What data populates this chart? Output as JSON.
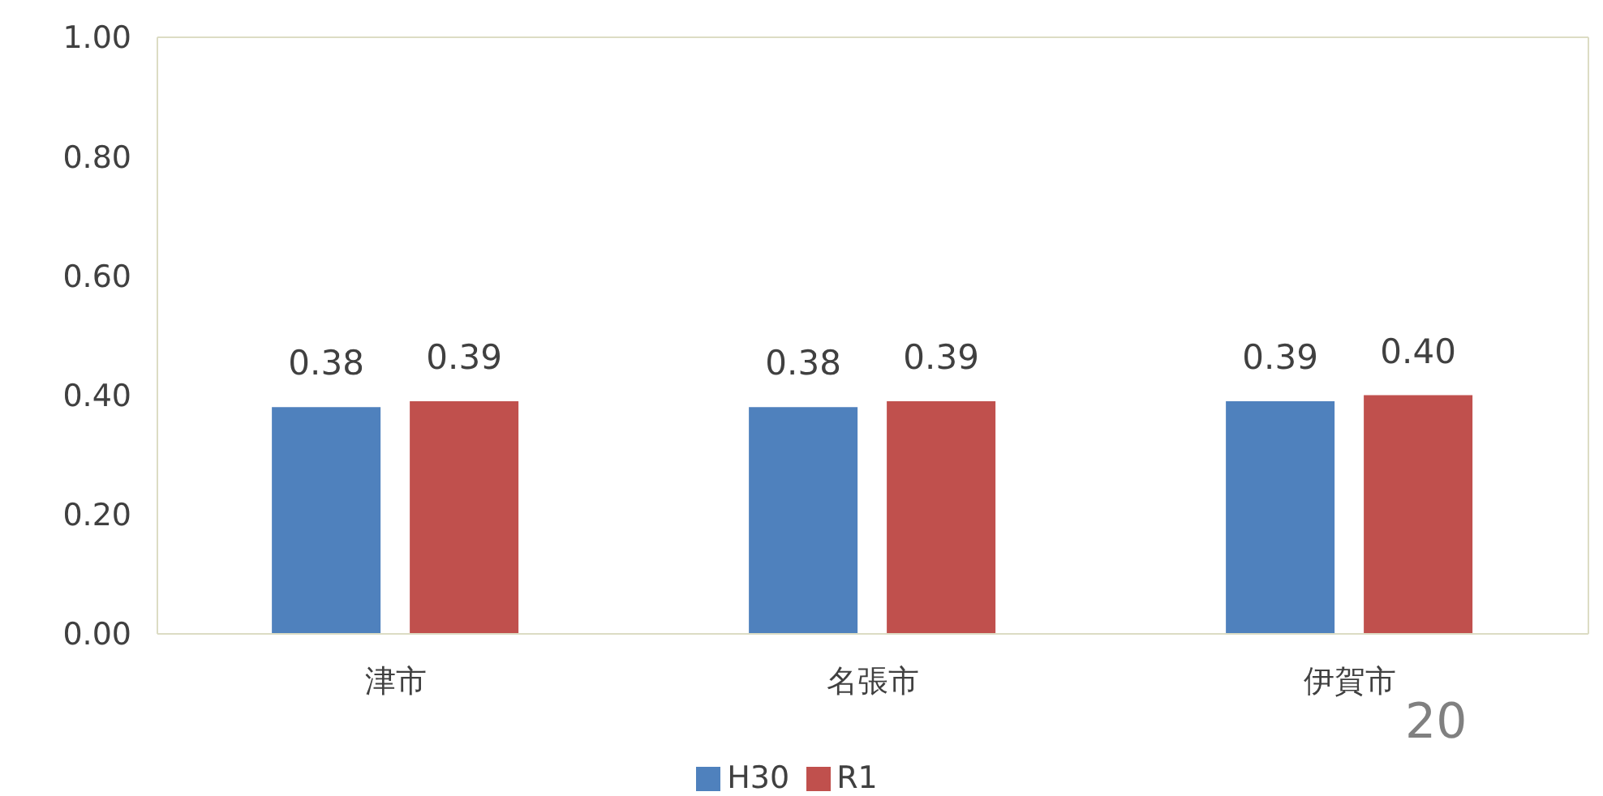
{
  "chart_data": {
    "type": "bar",
    "categories": [
      "津市",
      "名張市",
      "伊賀市"
    ],
    "series": [
      {
        "name": "H30",
        "color": "#4f81bd",
        "values": [
          0.38,
          0.38,
          0.39
        ],
        "value_labels": [
          "0.38",
          "0.38",
          "0.39"
        ]
      },
      {
        "name": "R1",
        "color": "#c0504d",
        "values": [
          0.39,
          0.39,
          0.4
        ],
        "value_labels": [
          "0.39",
          "0.39",
          "0.40"
        ]
      }
    ],
    "ylim": [
      0,
      1
    ],
    "yticks": [
      {
        "value": 0,
        "label": "0.00"
      },
      {
        "value": 0.2,
        "label": "0.20"
      },
      {
        "value": 0.4,
        "label": "0.40"
      },
      {
        "value": 0.6,
        "label": "0.60"
      },
      {
        "value": 0.8,
        "label": "0.80"
      },
      {
        "value": 1,
        "label": "1.00"
      }
    ],
    "grid": false,
    "legend": "bottom",
    "annotations": [
      "20"
    ]
  }
}
